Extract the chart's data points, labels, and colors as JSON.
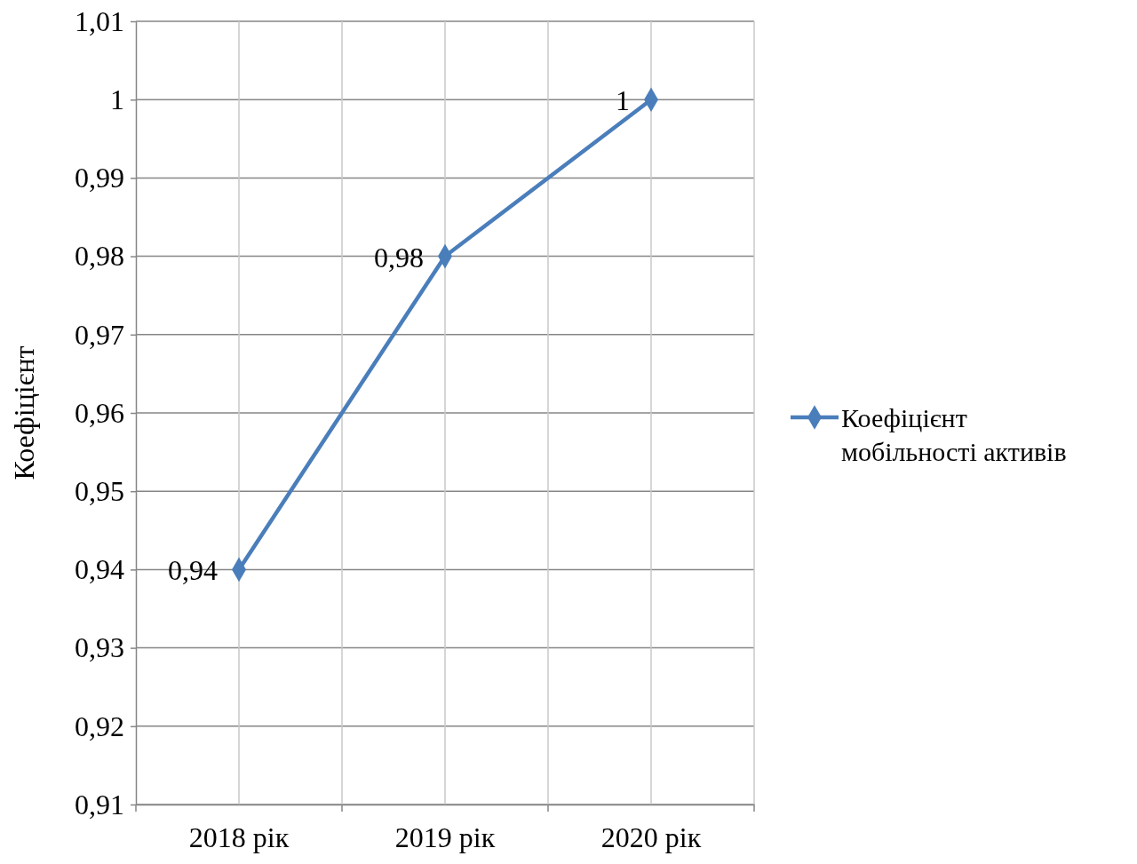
{
  "chart_data": {
    "type": "line",
    "ylabel": "Коефіцієнт",
    "categories": [
      "2018 рік",
      "2019 рік",
      "2020 рік"
    ],
    "series": [
      {
        "name": "Коефіцієнт мобільності активів",
        "color": "#4a7ebb",
        "values": [
          0.94,
          0.98,
          1
        ],
        "value_labels": [
          "0,94",
          "0,98",
          "1"
        ]
      }
    ],
    "ylim": [
      0.91,
      1.01
    ],
    "yticks": [
      {
        "value": 0.91,
        "label": "0,91"
      },
      {
        "value": 0.92,
        "label": "0,92"
      },
      {
        "value": 0.93,
        "label": "0,93"
      },
      {
        "value": 0.94,
        "label": "0,94"
      },
      {
        "value": 0.95,
        "label": "0,95"
      },
      {
        "value": 0.96,
        "label": "0,96"
      },
      {
        "value": 0.97,
        "label": "0,97"
      },
      {
        "value": 0.98,
        "label": "0,98"
      },
      {
        "value": 0.99,
        "label": "0,99"
      },
      1,
      {
        "value": 1.01,
        "label": "1,01"
      }
    ],
    "grid": true,
    "legend": "right",
    "marker": "diamond",
    "line_style": "solid"
  }
}
